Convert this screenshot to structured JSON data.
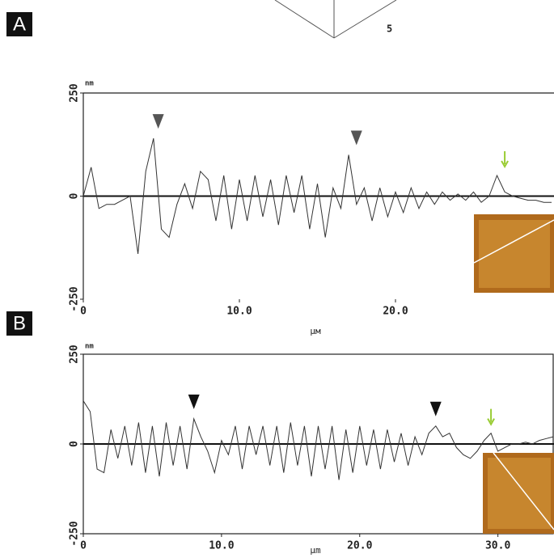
{
  "top_axis_label": "5",
  "chart_data": [
    {
      "type": "line",
      "panel_label": "A",
      "y_unit": "nm",
      "x_label": "µм",
      "color": "#333333",
      "x": [
        0,
        0.5,
        1,
        1.5,
        2,
        2.5,
        3,
        3.5,
        4,
        4.5,
        5,
        5.5,
        6,
        6.5,
        7,
        7.5,
        8,
        8.5,
        9,
        9.5,
        10,
        10.5,
        11,
        11.5,
        12,
        12.5,
        13,
        13.5,
        14,
        14.5,
        15,
        15.5,
        16,
        16.5,
        17,
        17.5,
        18,
        18.5,
        19,
        19.5,
        20,
        20.5,
        21,
        21.5,
        22,
        22.5,
        23,
        23.5,
        24,
        24.5,
        25,
        25.5,
        26,
        26.5,
        27,
        27.5,
        28,
        28.5,
        29,
        29.5,
        30
      ],
      "values": [
        0,
        70,
        -30,
        -20,
        -20,
        -10,
        0,
        -140,
        60,
        140,
        -80,
        -100,
        -20,
        30,
        -30,
        60,
        40,
        -60,
        50,
        -80,
        40,
        -60,
        50,
        -50,
        40,
        -70,
        50,
        -40,
        50,
        -80,
        30,
        -100,
        20,
        -30,
        100,
        -20,
        20,
        -60,
        20,
        -50,
        10,
        -40,
        20,
        -30,
        10,
        -20,
        10,
        -10,
        5,
        -10,
        10,
        -15,
        0,
        50,
        10,
        0,
        -5,
        -10,
        -10,
        -15,
        -15
      ],
      "xlim": [
        0,
        30
      ],
      "ylim": [
        -250,
        250
      ],
      "xticks": [
        0,
        {
          "value": 10,
          "label": "10.0"
        },
        {
          "value": 20,
          "label": "20.0"
        }
      ],
      "yticks": [
        -250,
        0,
        250
      ],
      "markers": [
        {
          "x": 4.8,
          "y": 140,
          "color": "#555555",
          "shape": "triangle"
        },
        {
          "x": 17.5,
          "y": 100,
          "color": "#555555",
          "shape": "triangle"
        },
        {
          "x": 27,
          "y": 50,
          "color": "#99cc33",
          "shape": "arrow"
        }
      ]
    },
    {
      "type": "line",
      "panel_label": "B",
      "y_unit": "nm",
      "x_label": "µm",
      "color": "#333333",
      "x": [
        0,
        0.5,
        1,
        1.5,
        2,
        2.5,
        3,
        3.5,
        4,
        4.5,
        5,
        5.5,
        6,
        6.5,
        7,
        7.5,
        8,
        8.5,
        9,
        9.5,
        10,
        10.5,
        11,
        11.5,
        12,
        12.5,
        13,
        13.5,
        14,
        14.5,
        15,
        15.5,
        16,
        16.5,
        17,
        17.5,
        18,
        18.5,
        19,
        19.5,
        20,
        20.5,
        21,
        21.5,
        22,
        22.5,
        23,
        23.5,
        24,
        24.5,
        25,
        25.5,
        26,
        26.5,
        27,
        27.5,
        28,
        28.5,
        29,
        29.5,
        30,
        30.5,
        31,
        31.5,
        32,
        32.5,
        33,
        33.5,
        34
      ],
      "values": [
        120,
        90,
        -70,
        -80,
        40,
        -40,
        50,
        -60,
        60,
        -80,
        50,
        -90,
        60,
        -60,
        50,
        -70,
        70,
        20,
        -20,
        -80,
        10,
        -30,
        50,
        -70,
        50,
        -30,
        50,
        -60,
        50,
        -80,
        60,
        -60,
        50,
        -90,
        50,
        -70,
        50,
        -100,
        40,
        -80,
        50,
        -60,
        40,
        -70,
        40,
        -50,
        30,
        -60,
        20,
        -30,
        30,
        50,
        20,
        30,
        -10,
        -30,
        -40,
        -20,
        10,
        30,
        -20,
        -10,
        0,
        0,
        5,
        0,
        10,
        15,
        20
      ],
      "xlim": [
        0,
        34
      ],
      "ylim": [
        -250,
        250
      ],
      "xticks": [
        0,
        {
          "value": 10,
          "label": "10.0"
        },
        {
          "value": 20,
          "label": "20.0"
        },
        {
          "value": 30,
          "label": "30.0"
        }
      ],
      "yticks": [
        -250,
        0,
        250
      ],
      "markers": [
        {
          "x": 8,
          "y": 70,
          "color": "#111111",
          "shape": "triangle"
        },
        {
          "x": 25.5,
          "y": 50,
          "color": "#111111",
          "shape": "triangle"
        },
        {
          "x": 29.5,
          "y": 30,
          "color": "#99cc33",
          "shape": "arrow"
        }
      ]
    }
  ]
}
